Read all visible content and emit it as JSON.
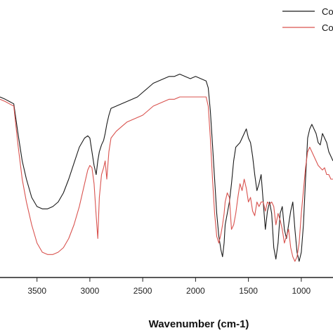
{
  "chart_data": {
    "type": "line",
    "xlabel": "Wavenumber (cm-1)",
    "ylabel": "",
    "title": "",
    "xlim": [
      3850,
      700
    ],
    "x_reversed": true,
    "x_ticks": [
      3500,
      3000,
      2500,
      2000,
      1500,
      1000
    ],
    "x_tick_labels": [
      "3500",
      "3000",
      "2500",
      "2000",
      "1500",
      "1000"
    ],
    "ylim": [
      0,
      100
    ],
    "y_ticks_visible": false,
    "grid": false,
    "legend_position": "top-right",
    "legend_labels": [
      "Co",
      "Co"
    ],
    "series": [
      {
        "color": "#1a1a1a",
        "x": [
          3850,
          3800,
          3760,
          3720,
          3680,
          3640,
          3600,
          3550,
          3500,
          3450,
          3400,
          3350,
          3300,
          3250,
          3200,
          3150,
          3100,
          3050,
          3020,
          3000,
          2980,
          2960,
          2940,
          2925,
          2910,
          2890,
          2870,
          2855,
          2840,
          2820,
          2800,
          2750,
          2700,
          2650,
          2600,
          2550,
          2500,
          2450,
          2400,
          2350,
          2300,
          2250,
          2200,
          2150,
          2100,
          2050,
          2000,
          1950,
          1900,
          1880,
          1860,
          1840,
          1820,
          1800,
          1780,
          1760,
          1745,
          1730,
          1720,
          1700,
          1680,
          1660,
          1640,
          1620,
          1600,
          1580,
          1560,
          1540,
          1520,
          1500,
          1480,
          1460,
          1440,
          1420,
          1400,
          1380,
          1360,
          1340,
          1320,
          1300,
          1280,
          1260,
          1240,
          1220,
          1200,
          1180,
          1160,
          1140,
          1120,
          1100,
          1080,
          1060,
          1040,
          1020,
          1000,
          980,
          960,
          940,
          920,
          900,
          880,
          860,
          840,
          820,
          800,
          780,
          760,
          740,
          720,
          700
        ],
        "y": [
          76,
          75,
          74,
          73,
          60,
          48,
          40,
          32,
          28,
          27,
          27,
          28,
          30,
          34,
          40,
          47,
          54,
          58,
          59,
          58,
          52,
          46,
          42,
          48,
          52,
          55,
          57,
          60,
          64,
          68,
          71,
          72,
          73,
          74,
          75,
          76,
          78,
          80,
          82,
          83,
          84,
          85,
          85,
          86,
          85,
          84,
          85,
          84,
          83,
          80,
          70,
          55,
          40,
          25,
          15,
          9,
          6,
          12,
          20,
          25,
          30,
          38,
          48,
          54,
          55,
          56,
          58,
          60,
          62,
          58,
          56,
          50,
          42,
          35,
          38,
          42,
          30,
          18,
          26,
          30,
          25,
          10,
          5,
          12,
          25,
          28,
          18,
          14,
          20,
          26,
          30,
          18,
          8,
          4,
          8,
          20,
          40,
          58,
          62,
          64,
          62,
          60,
          56,
          55,
          60,
          58,
          56,
          52,
          50,
          48
        ]
      },
      {
        "color": "#d9534f",
        "x": [
          3850,
          3800,
          3760,
          3720,
          3680,
          3640,
          3600,
          3550,
          3500,
          3450,
          3400,
          3350,
          3300,
          3250,
          3200,
          3150,
          3100,
          3050,
          3020,
          3000,
          2980,
          2960,
          2940,
          2925,
          2910,
          2890,
          2870,
          2855,
          2840,
          2820,
          2800,
          2750,
          2700,
          2650,
          2600,
          2550,
          2500,
          2450,
          2400,
          2350,
          2300,
          2250,
          2200,
          2150,
          2100,
          2050,
          2000,
          1950,
          1900,
          1880,
          1860,
          1840,
          1820,
          1800,
          1780,
          1760,
          1745,
          1730,
          1720,
          1700,
          1680,
          1660,
          1640,
          1620,
          1600,
          1580,
          1560,
          1540,
          1520,
          1500,
          1480,
          1460,
          1440,
          1420,
          1400,
          1380,
          1360,
          1340,
          1320,
          1300,
          1280,
          1260,
          1240,
          1220,
          1200,
          1180,
          1160,
          1140,
          1120,
          1100,
          1080,
          1060,
          1040,
          1020,
          1000,
          980,
          960,
          940,
          920,
          900,
          880,
          860,
          840,
          820,
          800,
          780,
          760,
          740,
          720,
          700
        ],
        "y": [
          75,
          74,
          73,
          72,
          55,
          40,
          30,
          20,
          12,
          8,
          7,
          7,
          8,
          10,
          14,
          20,
          28,
          38,
          44,
          46,
          45,
          38,
          24,
          14,
          32,
          42,
          45,
          48,
          40,
          52,
          58,
          61,
          63,
          65,
          66,
          67,
          68,
          70,
          72,
          73,
          74,
          75,
          75,
          76,
          76,
          76,
          76,
          76,
          76,
          72,
          58,
          40,
          25,
          15,
          12,
          16,
          20,
          25,
          30,
          34,
          32,
          18,
          20,
          25,
          32,
          38,
          35,
          40,
          36,
          30,
          32,
          26,
          24,
          30,
          28,
          30,
          30,
          26,
          30,
          29,
          30,
          28,
          20,
          25,
          22,
          18,
          12,
          15,
          18,
          10,
          6,
          4,
          6,
          12,
          25,
          35,
          45,
          52,
          54,
          52,
          50,
          48,
          46,
          45,
          44,
          45,
          42,
          42,
          40,
          40
        ]
      }
    ]
  }
}
